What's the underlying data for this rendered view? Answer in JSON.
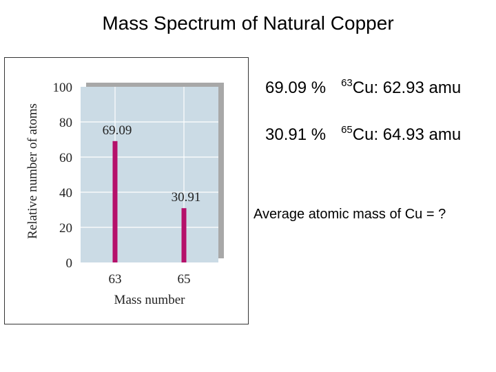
{
  "page": {
    "title": "Mass Spectrum of Natural Copper"
  },
  "isotopes": [
    {
      "percent": "69.09 %",
      "mass_number": "63",
      "symbol": "Cu",
      "mass": ": 62.93 amu"
    },
    {
      "percent": "30.91 %",
      "mass_number": "65",
      "symbol": "Cu",
      "mass": ": 64.93 amu"
    }
  ],
  "question": "Average atomic mass of Cu = ?",
  "colors": {
    "bar": "#b5106a",
    "plot_bg": "#cbdbe5",
    "grid": "#ffffff",
    "shadow": "#a8a8a8"
  },
  "chart_data": {
    "type": "bar",
    "categories": [
      "63",
      "65"
    ],
    "values": [
      69.09,
      30.91
    ],
    "data_labels": [
      "69.09",
      "30.91"
    ],
    "xlabel": "Mass number",
    "ylabel": "Relative number of atoms",
    "yticks": [
      "0",
      "20",
      "40",
      "60",
      "80",
      "100"
    ],
    "ylim": [
      0,
      100
    ],
    "grid": true,
    "legend": "none"
  }
}
